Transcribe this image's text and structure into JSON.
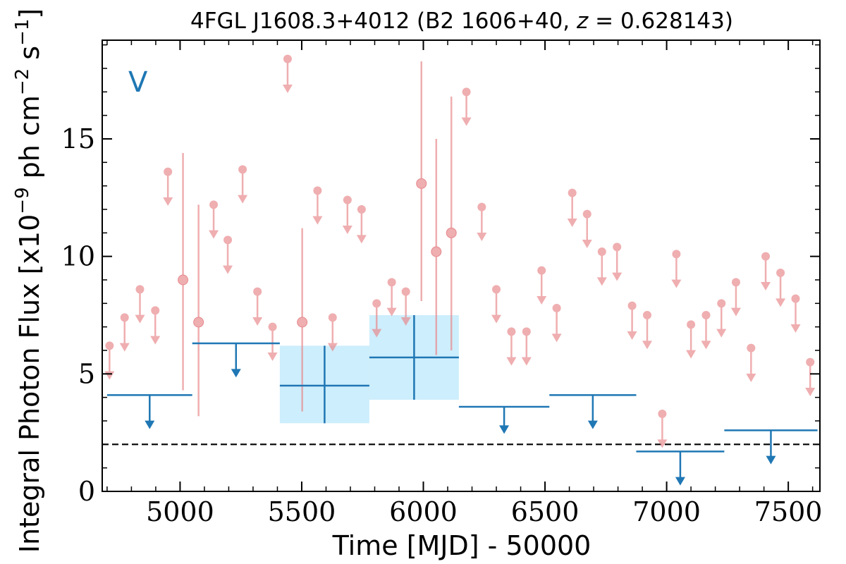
{
  "chart_data": {
    "type": "scatter",
    "title": "4FGL J1608.3+4012 (B2 1606+40, z = 0.628143)",
    "xlabel": "Time [MJD] - 50000",
    "ylabel": "Integral Photon Flux [x10^-9 ph cm^-2 s^-1]",
    "xlim": [
      4680,
      7630
    ],
    "ylim": [
      0,
      19.2
    ],
    "xticks": [
      5000,
      5500,
      6000,
      6500,
      7000,
      7500
    ],
    "xtick_labels": [
      "5000",
      "5500",
      "6000",
      "6500",
      "7000",
      "7500"
    ],
    "yticks": [
      0,
      5,
      10,
      15
    ],
    "ytick_labels": [
      "0",
      "5",
      "10",
      "15"
    ],
    "band_label": "V",
    "reference_line": 2.0,
    "colors": {
      "monthly": "#e8888c",
      "band": "#1f77b4",
      "band_fill": "#cdeefc",
      "reference": "#000000"
    },
    "series": [
      {
        "kind": "monthly_upper_limits",
        "x": [
          4710,
          4772,
          4835,
          4898,
          4950,
          5138,
          5196,
          5257,
          5318,
          5380,
          5442,
          5565,
          5627,
          5688,
          5746,
          5808,
          5870,
          5928,
          6177,
          6240,
          6300,
          6362,
          6424,
          6486,
          6548,
          6612,
          6673,
          6734,
          6796,
          6858,
          6920,
          6982,
          7040,
          7100,
          7162,
          7225,
          7285,
          7347,
          7407,
          7468,
          7530,
          7590
        ],
        "values": [
          6.2,
          7.4,
          8.6,
          7.7,
          13.6,
          12.2,
          10.7,
          13.7,
          8.5,
          7.0,
          18.4,
          12.8,
          7.4,
          12.4,
          12.0,
          8.0,
          8.9,
          8.5,
          17.0,
          12.1,
          8.6,
          6.8,
          6.8,
          9.4,
          7.8,
          12.7,
          11.8,
          10.2,
          10.4,
          7.9,
          7.5,
          3.3,
          10.1,
          7.1,
          7.5,
          8.0,
          8.9,
          6.1,
          10.0,
          9.3,
          8.2,
          5.5
        ]
      },
      {
        "kind": "monthly_detections",
        "x": [
          5012,
          5076,
          5502,
          5992,
          6053,
          6115
        ],
        "values": [
          9.0,
          7.2,
          7.2,
          13.1,
          10.2,
          11.0
        ],
        "err_low": [
          4.3,
          3.2,
          3.4,
          8.1,
          5.8,
          6.0
        ],
        "err_high": [
          14.4,
          12.2,
          11.2,
          18.3,
          15.0,
          16.8
        ]
      },
      {
        "kind": "yearly_upper_limits",
        "x_start": [
          4700,
          5050,
          6518,
          6875,
          7237
        ],
        "x_end": [
          5050,
          5410,
          6875,
          7237,
          7620
        ],
        "values": [
          4.1,
          6.3,
          4.1,
          1.7,
          2.6
        ]
      },
      {
        "kind": "yearly_upper_limits_short",
        "x_start": [
          6146
        ],
        "x_end": [
          6518
        ],
        "values": [
          3.6
        ]
      },
      {
        "kind": "yearly_detections",
        "x_start": [
          5410,
          5778
        ],
        "x_end": [
          5778,
          6146
        ],
        "values": [
          4.5,
          5.7
        ],
        "err_low": [
          2.9,
          3.9
        ],
        "err_high": [
          6.2,
          7.5
        ]
      }
    ]
  }
}
